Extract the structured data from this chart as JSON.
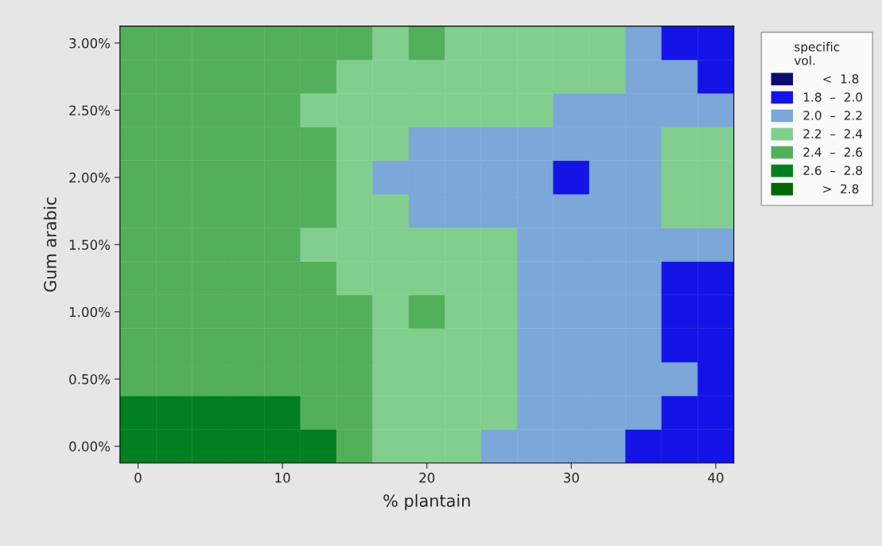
{
  "chart_data": {
    "type": "heatmap",
    "xlabel": "% plantain",
    "ylabel": "Gum arabic",
    "legend_title": "specific\nvol.",
    "categories": [
      "0",
      null,
      null,
      null,
      "10",
      null,
      null,
      null,
      "20",
      null,
      null,
      null,
      "30",
      null,
      null,
      null,
      "40"
    ],
    "y_categories": [
      "3.00%",
      null,
      "2.50%",
      null,
      "2.00%",
      null,
      "1.50%",
      null,
      "1.00%",
      null,
      "0.50%",
      null,
      "0.00%"
    ],
    "cells": [
      [
        2.5,
        2.5,
        2.5,
        2.5,
        2.5,
        2.5,
        2.5,
        2.3,
        2.5,
        2.3,
        2.3,
        2.3,
        2.3,
        2.3,
        2.1,
        1.9,
        1.9
      ],
      [
        2.5,
        2.5,
        2.5,
        2.5,
        2.5,
        2.5,
        2.3,
        2.3,
        2.3,
        2.3,
        2.3,
        2.3,
        2.3,
        2.3,
        2.1,
        2.1,
        1.9
      ],
      [
        2.5,
        2.5,
        2.5,
        2.5,
        2.5,
        2.3,
        2.3,
        2.3,
        2.3,
        2.3,
        2.3,
        2.3,
        2.1,
        2.1,
        2.1,
        2.1,
        2.1
      ],
      [
        2.5,
        2.5,
        2.5,
        2.5,
        2.5,
        2.5,
        2.3,
        2.3,
        2.1,
        2.1,
        2.1,
        2.1,
        2.1,
        2.1,
        2.1,
        2.3,
        2.3
      ],
      [
        2.5,
        2.5,
        2.5,
        2.5,
        2.5,
        2.5,
        2.3,
        2.1,
        2.1,
        2.1,
        2.1,
        2.1,
        1.9,
        2.1,
        2.1,
        2.3,
        2.3
      ],
      [
        2.5,
        2.5,
        2.5,
        2.5,
        2.5,
        2.5,
        2.3,
        2.3,
        2.1,
        2.1,
        2.1,
        2.1,
        2.1,
        2.1,
        2.1,
        2.3,
        2.3
      ],
      [
        2.5,
        2.5,
        2.5,
        2.5,
        2.5,
        2.3,
        2.3,
        2.3,
        2.3,
        2.3,
        2.3,
        2.1,
        2.1,
        2.1,
        2.1,
        2.1,
        2.1
      ],
      [
        2.5,
        2.5,
        2.5,
        2.5,
        2.5,
        2.5,
        2.3,
        2.3,
        2.3,
        2.3,
        2.3,
        2.1,
        2.1,
        2.1,
        2.1,
        1.9,
        1.9
      ],
      [
        2.5,
        2.5,
        2.5,
        2.5,
        2.5,
        2.5,
        2.5,
        2.3,
        2.5,
        2.3,
        2.3,
        2.1,
        2.1,
        2.1,
        2.1,
        1.9,
        1.9
      ],
      [
        2.5,
        2.5,
        2.5,
        2.5,
        2.5,
        2.5,
        2.5,
        2.3,
        2.3,
        2.3,
        2.3,
        2.1,
        2.1,
        2.1,
        2.1,
        1.9,
        1.9
      ],
      [
        2.5,
        2.5,
        2.5,
        2.5,
        2.5,
        2.5,
        2.5,
        2.3,
        2.3,
        2.3,
        2.3,
        2.1,
        2.1,
        2.1,
        2.1,
        2.1,
        1.9
      ],
      [
        2.7,
        2.7,
        2.7,
        2.7,
        2.7,
        2.5,
        2.5,
        2.3,
        2.3,
        2.3,
        2.3,
        2.1,
        2.1,
        2.1,
        2.1,
        1.9,
        1.9
      ],
      [
        2.7,
        2.7,
        2.7,
        2.7,
        2.7,
        2.7,
        2.5,
        2.3,
        2.3,
        2.3,
        2.1,
        2.1,
        2.1,
        2.1,
        1.9,
        1.9,
        1.9
      ]
    ],
    "clim": [
      1.6,
      3.0
    ],
    "colors": [
      "#0c0c6e",
      "#1414e6",
      "#7ba7d9",
      "#82ce8e",
      "#52b05a",
      "#008020",
      "#006600"
    ],
    "cticks": [
      {
        "value": 1.7,
        "label": "     <  1.8"
      },
      {
        "value": 1.9,
        "label": "1.8  –  2.0"
      },
      {
        "value": 2.1,
        "label": "2.0  –  2.2"
      },
      {
        "value": 2.3,
        "label": "2.2  –  2.4"
      },
      {
        "value": 2.5,
        "label": "2.4  –  2.6"
      },
      {
        "value": 2.7,
        "label": "2.6  –  2.8"
      },
      {
        "value": 2.9,
        "label": "     >  2.8"
      }
    ]
  }
}
